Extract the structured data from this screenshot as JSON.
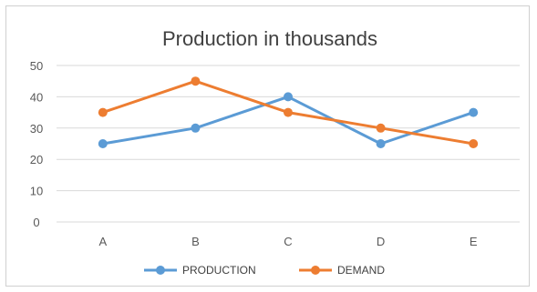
{
  "chart_data": {
    "type": "line",
    "title": "Production in thousands",
    "categories": [
      "A",
      "B",
      "C",
      "D",
      "E"
    ],
    "series": [
      {
        "name": "PRODUCTION",
        "color": "#5b9bd5",
        "values": [
          25,
          30,
          40,
          25,
          35
        ]
      },
      {
        "name": "DEMAND",
        "color": "#ed7d31",
        "values": [
          35,
          45,
          35,
          30,
          25
        ]
      }
    ],
    "yticks": [
      0,
      10,
      20,
      30,
      40,
      50
    ],
    "ylim": [
      0,
      50
    ],
    "grid": true,
    "legend_position": "bottom"
  }
}
